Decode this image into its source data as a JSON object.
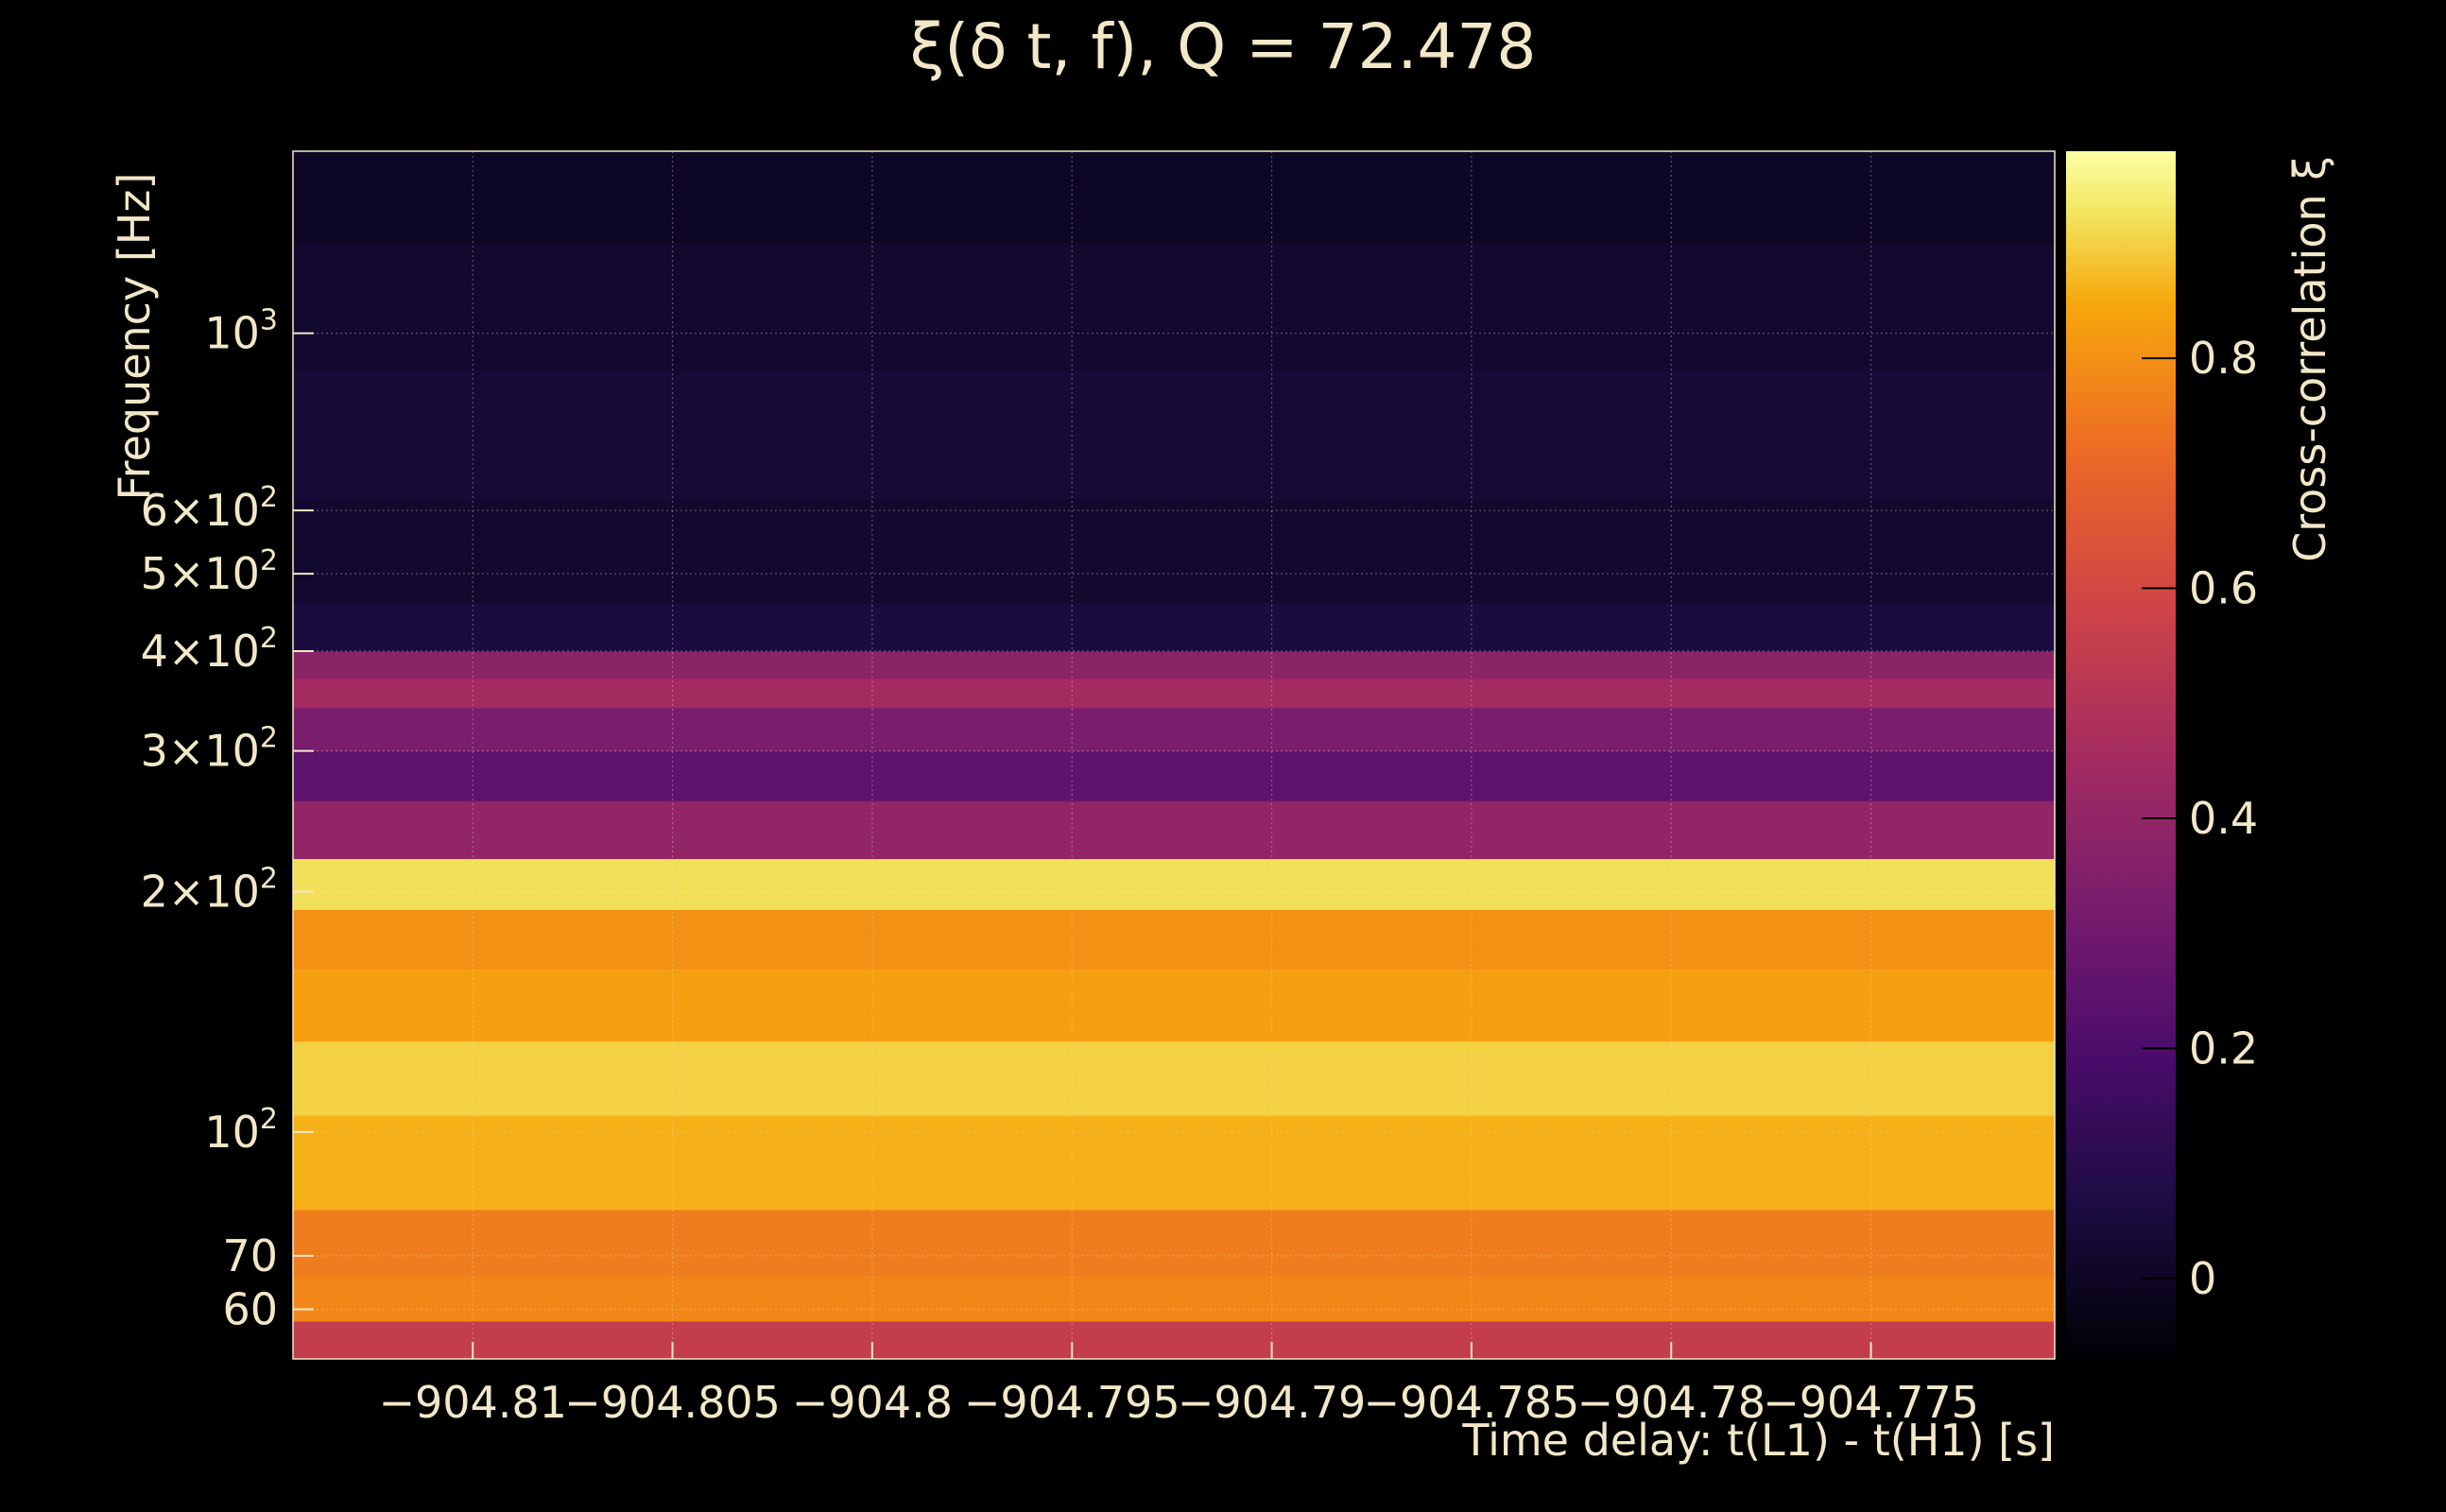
{
  "chart_data": {
    "type": "heatmap",
    "title": "ξ(δ t, f), Q = 72.478",
    "xlabel": "Time delay: t(L1) - t(H1) [s]",
    "ylabel": "Frequency [Hz]",
    "colorbar_label": "Cross-correlation ξ",
    "colormap": "inferno",
    "xlim": [
      -904.8145,
      -904.7704
    ],
    "ylim": [
      52,
      1690
    ],
    "y_scale": "log",
    "clim": [
      -0.07,
      0.98
    ],
    "x_ticks": [
      {
        "value": -904.81,
        "label": "−904.81"
      },
      {
        "value": -904.805,
        "label": "−904.805"
      },
      {
        "value": -904.8,
        "label": "−904.8"
      },
      {
        "value": -904.795,
        "label": "−904.795"
      },
      {
        "value": -904.79,
        "label": "−904.79"
      },
      {
        "value": -904.785,
        "label": "−904.785"
      },
      {
        "value": -904.78,
        "label": "−904.78"
      },
      {
        "value": -904.775,
        "label": "−904.775"
      }
    ],
    "y_ticks": [
      {
        "value": 60,
        "base": "60",
        "exp": ""
      },
      {
        "value": 70,
        "base": "70",
        "exp": ""
      },
      {
        "value": 100,
        "base": "10",
        "exp": "2"
      },
      {
        "value": 200,
        "base": "2×10",
        "exp": "2"
      },
      {
        "value": 300,
        "base": "3×10",
        "exp": "2"
      },
      {
        "value": 400,
        "base": "4×10",
        "exp": "2"
      },
      {
        "value": 500,
        "base": "5×10",
        "exp": "2"
      },
      {
        "value": 600,
        "base": "6×10",
        "exp": "2"
      },
      {
        "value": 1000,
        "base": "10",
        "exp": "3"
      }
    ],
    "colorbar_ticks": [
      {
        "value": 0,
        "label": "0"
      },
      {
        "value": 0.2,
        "label": "0.2"
      },
      {
        "value": 0.4,
        "label": "0.4"
      },
      {
        "value": 0.6,
        "label": "0.6"
      },
      {
        "value": 0.8,
        "label": "0.8"
      }
    ],
    "bands": [
      {
        "f_min": 52,
        "f_max": 58,
        "xi": 0.55
      },
      {
        "f_min": 58,
        "f_max": 66,
        "xi": 0.78
      },
      {
        "f_min": 66,
        "f_max": 80,
        "xi": 0.76
      },
      {
        "f_min": 80,
        "f_max": 105,
        "xi": 0.86
      },
      {
        "f_min": 105,
        "f_max": 130,
        "xi": 0.9
      },
      {
        "f_min": 130,
        "f_max": 160,
        "xi": 0.83
      },
      {
        "f_min": 160,
        "f_max": 190,
        "xi": 0.8
      },
      {
        "f_min": 190,
        "f_max": 220,
        "xi": 0.92
      },
      {
        "f_min": 220,
        "f_max": 260,
        "xi": 0.4
      },
      {
        "f_min": 260,
        "f_max": 300,
        "xi": 0.25
      },
      {
        "f_min": 300,
        "f_max": 340,
        "xi": 0.33
      },
      {
        "f_min": 340,
        "f_max": 370,
        "xi": 0.45
      },
      {
        "f_min": 370,
        "f_max": 400,
        "xi": 0.38
      },
      {
        "f_min": 400,
        "f_max": 460,
        "xi": 0.06
      },
      {
        "f_min": 460,
        "f_max": 620,
        "xi": 0.02
      },
      {
        "f_min": 620,
        "f_max": 900,
        "xi": 0.04
      },
      {
        "f_min": 900,
        "f_max": 1300,
        "xi": 0.02
      },
      {
        "f_min": 1300,
        "f_max": 1690,
        "xi": 0.0
      }
    ]
  }
}
